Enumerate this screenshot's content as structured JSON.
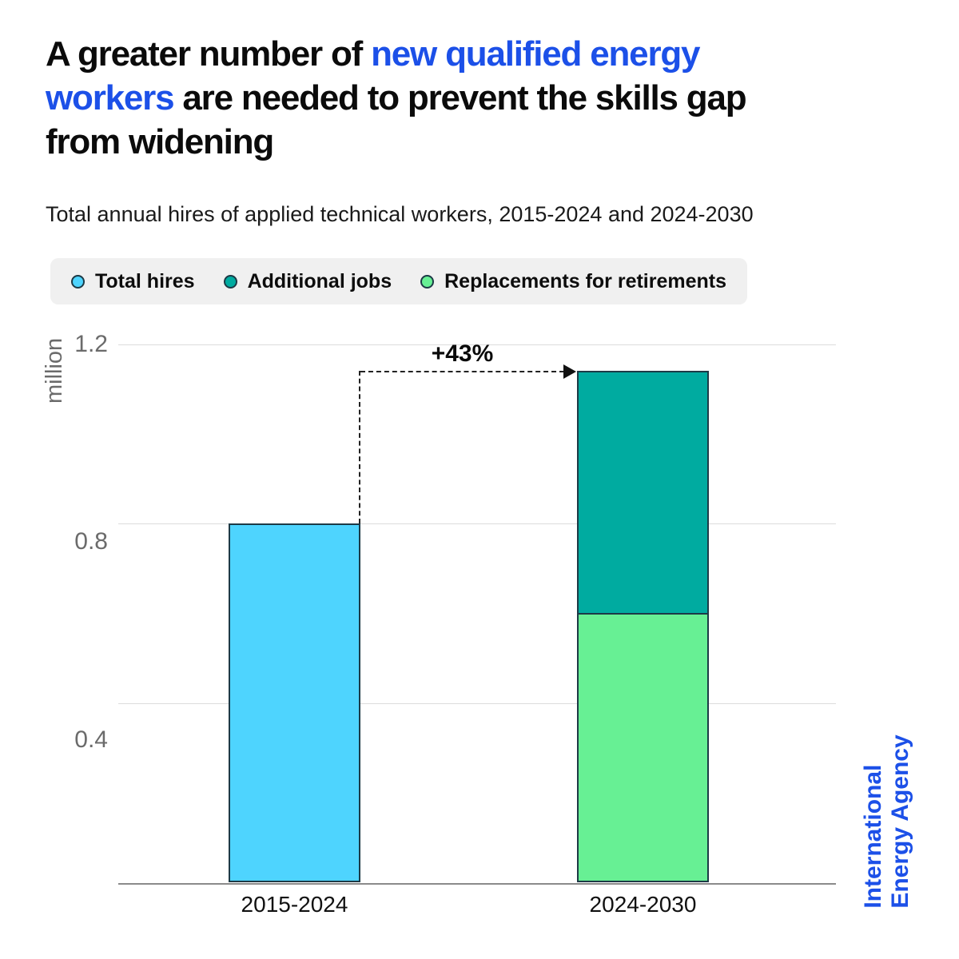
{
  "title": {
    "lines": [
      [
        {
          "text": "A greater number of ",
          "highlight": false
        },
        {
          "text": "new qualified energy",
          "highlight": true
        }
      ],
      [
        {
          "text": "workers",
          "highlight": true
        },
        {
          "text": " are needed to prevent the skills gap",
          "highlight": false
        }
      ],
      [
        {
          "text": "from widening",
          "highlight": false
        }
      ]
    ]
  },
  "subtitle": "Total annual hires of applied technical workers,  2015-2024 and 2024-2030",
  "legend": {
    "items": [
      {
        "label": "Total hires",
        "color": "#4ed4fe"
      },
      {
        "label": "Additional jobs",
        "color": "#00aba0"
      },
      {
        "label": "Replacements for retirements",
        "color": "#67f094"
      }
    ]
  },
  "chart_data": {
    "type": "bar",
    "stacked": true,
    "categories": [
      "2015-2024",
      "2024-2030"
    ],
    "series": [
      {
        "name": "Total hires",
        "color": "#4ed4fe",
        "values": [
          0.8,
          0
        ]
      },
      {
        "name": "Replacements for retirements",
        "color": "#67f094",
        "values": [
          0,
          0.6
        ]
      },
      {
        "name": "Additional jobs",
        "color": "#00aba0",
        "values": [
          0,
          0.54
        ]
      }
    ],
    "totals": [
      0.8,
      1.14
    ],
    "yticks": [
      0.4,
      0.8,
      1.2
    ],
    "ylabel": "million",
    "ylim": [
      0,
      1.28
    ],
    "grid": true,
    "legend_position": "top",
    "annotation": {
      "label": "+43%",
      "from_category": "2015-2024",
      "to_category": "2024-2030"
    }
  },
  "branding": {
    "line1": "International",
    "line2": "Energy Agency"
  },
  "colors": {
    "accent_blue": "#1c50e8",
    "bar_blue": "#4ed4fe",
    "bar_teal": "#00aba0",
    "bar_green": "#67f094",
    "legend_background": "#f0f0f0",
    "gridline": "#dcdcdc",
    "axis_text": "#6b6b6b"
  }
}
